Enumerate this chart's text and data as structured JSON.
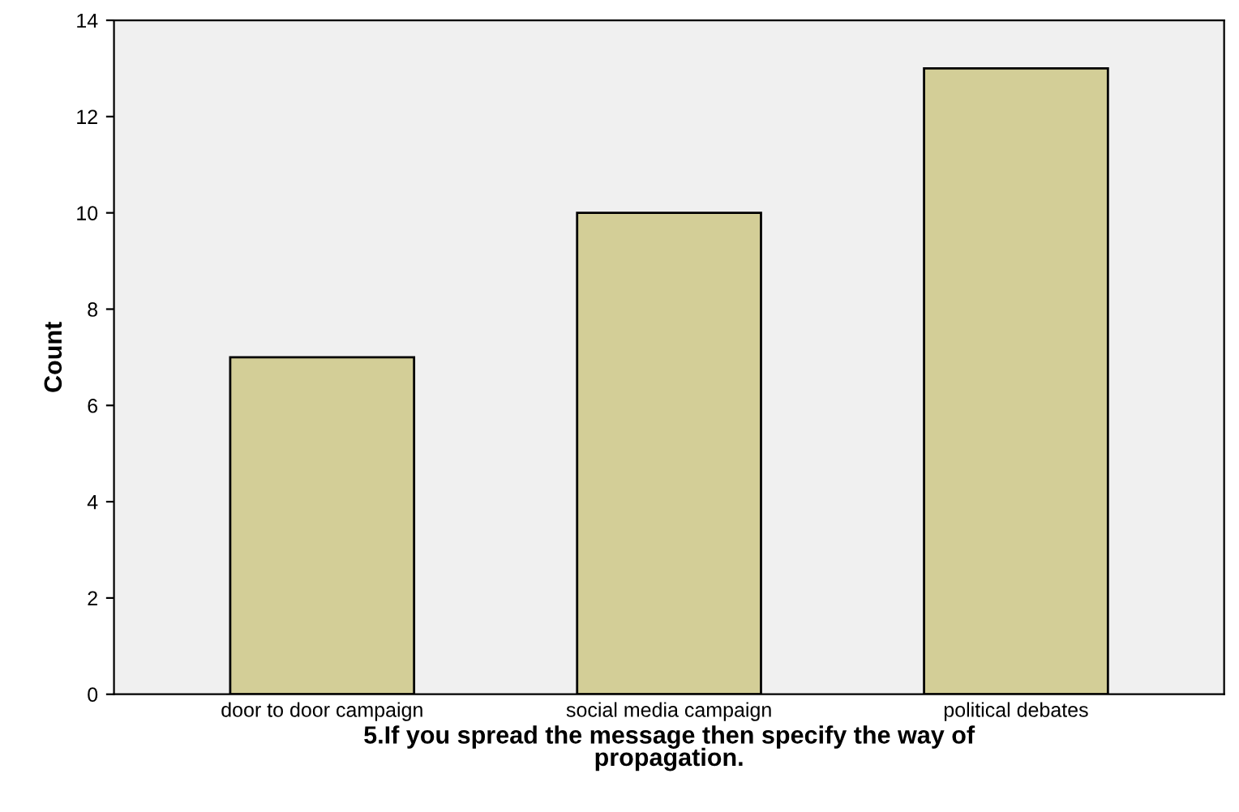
{
  "chart_data": {
    "type": "bar",
    "categories": [
      "door to door campaign",
      "social media campaign",
      "political debates"
    ],
    "values": [
      7,
      10,
      13
    ],
    "color": "#d3ce97",
    "xlabel": "5.If you spread the message then specify the way of\npropagation.",
    "ylabel": "Count",
    "ylim": [
      0,
      14
    ],
    "yticks": [
      0,
      2,
      4,
      6,
      8,
      10,
      12,
      14
    ],
    "grid": false,
    "legend": false
  }
}
